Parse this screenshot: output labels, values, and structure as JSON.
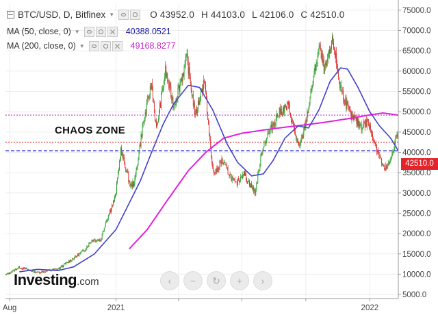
{
  "legend": {
    "symbol": "BTC/USD, D, Bitfinex",
    "ohlc": {
      "open": "O 43952.0",
      "high": "H 44103.0",
      "low": "L 42106.0",
      "close": "C 42510.0"
    },
    "ma50": {
      "label": "MA (50, close, 0)",
      "value": "40388.0521",
      "color": "#1a1a9e"
    },
    "ma200": {
      "label": "MA (200, close, 0)",
      "value": "49168.8277",
      "color": "#cc1fcc"
    }
  },
  "annotation": "CHAOS ZONE",
  "current_price": "42510.0",
  "logo": {
    "name": "Investing",
    "suffix": ".com"
  },
  "colors": {
    "up": "#2a9d2a",
    "down": "#d92b2b",
    "ma50": "#4040c8",
    "ma200": "#e020e0",
    "red_line": "#e03030",
    "blue_dash": "#2020d0",
    "magenta_dash": "#e040e0",
    "tag": "#e3242b"
  },
  "nav_controls": [
    "chevron-left-icon",
    "minus-icon",
    "reset-icon",
    "plus-icon",
    "chevron-right-icon"
  ],
  "chart_data": {
    "type": "candlestick",
    "y_axis_side": "right",
    "ylim": [
      4000,
      76500
    ],
    "y_ticks": [
      "75000.0",
      "70000.0",
      "65000.0",
      "60000.0",
      "55000.0",
      "50000.0",
      "45000.0",
      "40000.0",
      "35000.0",
      "30000.0",
      "25000.0",
      "20000.0",
      "15000.0",
      "10000.0",
      "5000.0"
    ],
    "y_tick_values": [
      75000,
      70000,
      65000,
      60000,
      55000,
      50000,
      45000,
      40000,
      35000,
      30000,
      25000,
      20000,
      15000,
      10000,
      5000
    ],
    "x_range": [
      "2020-07-26",
      "2022-02-11"
    ],
    "x_ticks": [
      {
        "date": "2020-08-01",
        "label": "Aug"
      },
      {
        "date": "2021-01-01",
        "label": "2021"
      },
      {
        "date": "2021-04-01",
        "label": ""
      },
      {
        "date": "2021-07-01",
        "label": ""
      },
      {
        "date": "2021-10-01",
        "label": ""
      },
      {
        "date": "2022-01-01",
        "label": "2022"
      }
    ],
    "horizontal_lines": [
      {
        "value": 49168.8277,
        "style": "dotted",
        "color": "#e040e0"
      },
      {
        "value": 42510.0,
        "style": "dotted",
        "color": "#e03030"
      },
      {
        "value": 40388.0521,
        "style": "dashed",
        "color": "#2020d0"
      }
    ],
    "price_path": [
      [
        "2020-07-26",
        9800
      ],
      [
        "2020-08-15",
        11700
      ],
      [
        "2020-09-10",
        10400
      ],
      [
        "2020-10-10",
        11300
      ],
      [
        "2020-10-25",
        13100
      ],
      [
        "2020-11-15",
        15700
      ],
      [
        "2020-11-28",
        18500
      ],
      [
        "2020-12-10",
        18400
      ],
      [
        "2020-12-17",
        22800
      ],
      [
        "2020-12-31",
        29000
      ],
      [
        "2021-01-08",
        40500
      ],
      [
        "2021-01-22",
        31500
      ],
      [
        "2021-01-28",
        33000
      ],
      [
        "2021-02-08",
        46000
      ],
      [
        "2021-02-21",
        57000
      ],
      [
        "2021-02-28",
        45500
      ],
      [
        "2021-03-13",
        60000
      ],
      [
        "2021-03-25",
        51500
      ],
      [
        "2021-04-13",
        63000
      ],
      [
        "2021-04-25",
        49000
      ],
      [
        "2021-05-08",
        58000
      ],
      [
        "2021-05-19",
        37000
      ],
      [
        "2021-05-23",
        34500
      ],
      [
        "2021-06-02",
        38000
      ],
      [
        "2021-06-22",
        32000
      ],
      [
        "2021-07-03",
        35000
      ],
      [
        "2021-07-20",
        30000
      ],
      [
        "2021-07-31",
        41500
      ],
      [
        "2021-08-22",
        49500
      ],
      [
        "2021-09-06",
        51500
      ],
      [
        "2021-09-21",
        40700
      ],
      [
        "2021-10-01",
        47500
      ],
      [
        "2021-10-20",
        66000
      ],
      [
        "2021-10-28",
        60000
      ],
      [
        "2021-11-09",
        67500
      ],
      [
        "2021-11-19",
        56500
      ],
      [
        "2021-12-04",
        49000
      ],
      [
        "2021-12-20",
        46500
      ],
      [
        "2021-12-29",
        47500
      ],
      [
        "2022-01-10",
        41500
      ],
      [
        "2022-01-22",
        35500
      ],
      [
        "2022-01-30",
        37500
      ],
      [
        "2022-02-08",
        44300
      ],
      [
        "2022-02-11",
        42510
      ]
    ],
    "ma50_path": [
      [
        "2020-08-15",
        10600
      ],
      [
        "2020-09-10",
        11200
      ],
      [
        "2020-10-10",
        10900
      ],
      [
        "2020-11-01",
        11800
      ],
      [
        "2020-12-01",
        15000
      ],
      [
        "2021-01-01",
        21000
      ],
      [
        "2021-01-20",
        27500
      ],
      [
        "2021-02-05",
        33000
      ],
      [
        "2021-02-20",
        39500
      ],
      [
        "2021-03-10",
        47000
      ],
      [
        "2021-03-25",
        52000
      ],
      [
        "2021-04-15",
        56500
      ],
      [
        "2021-05-01",
        56000
      ],
      [
        "2021-05-20",
        50500
      ],
      [
        "2021-06-10",
        42000
      ],
      [
        "2021-06-25",
        37500
      ],
      [
        "2021-07-15",
        34200
      ],
      [
        "2021-08-01",
        34700
      ],
      [
        "2021-08-15",
        38000
      ],
      [
        "2021-09-01",
        43500
      ],
      [
        "2021-09-20",
        46500
      ],
      [
        "2021-10-05",
        46000
      ],
      [
        "2021-10-20",
        50500
      ],
      [
        "2021-11-05",
        57500
      ],
      [
        "2021-11-20",
        60800
      ],
      [
        "2021-11-30",
        60500
      ],
      [
        "2021-12-15",
        56000
      ],
      [
        "2022-01-01",
        50000
      ],
      [
        "2022-01-15",
        46500
      ],
      [
        "2022-01-31",
        43500
      ],
      [
        "2022-02-11",
        40388
      ]
    ],
    "ma200_path": [
      [
        "2021-01-20",
        16200
      ],
      [
        "2021-02-15",
        21000
      ],
      [
        "2021-03-15",
        28000
      ],
      [
        "2021-04-15",
        35500
      ],
      [
        "2021-05-10",
        40000
      ],
      [
        "2021-06-05",
        43500
      ],
      [
        "2021-07-01",
        44700
      ],
      [
        "2021-08-01",
        45500
      ],
      [
        "2021-09-01",
        46200
      ],
      [
        "2021-10-01",
        46800
      ],
      [
        "2021-11-01",
        47500
      ],
      [
        "2021-12-01",
        48300
      ],
      [
        "2022-01-01",
        49200
      ],
      [
        "2022-01-20",
        49700
      ],
      [
        "2022-02-11",
        49169
      ]
    ]
  }
}
